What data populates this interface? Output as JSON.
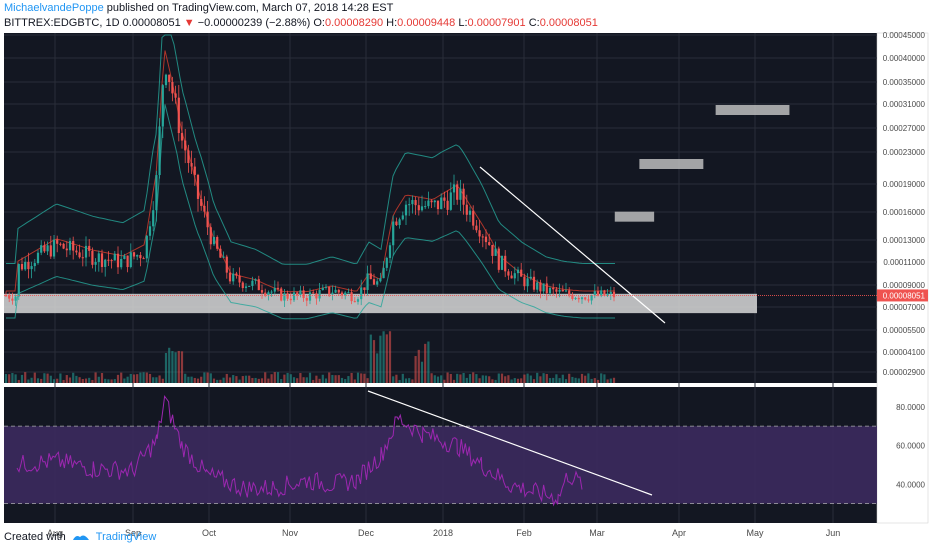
{
  "header": {
    "author": "MichaelvandePoppe",
    "published": "published on TradingView.com, March 07, 2018 14:28 EST",
    "symbol": "BITTREX:EDGBTC, 1D",
    "last": "0.00008051",
    "change": "−0.00000239 (−2.88%)",
    "o_label": "O:",
    "o_val": "0.00008290",
    "h_label": "H:",
    "h_val": "0.00009448",
    "l_label": "L:",
    "l_val": "0.00007901",
    "c_label": "C:",
    "c_val": "0.00008051"
  },
  "footer": {
    "created_with": "Created with",
    "brand": "TradingView"
  },
  "colors": {
    "background": "#131722",
    "up": "#26a69a",
    "down": "#ef5350",
    "bollinger": "#26a69a",
    "ma": "#c0392b",
    "rsi_line": "#9c27b0",
    "rsi_band": "#3c2a5e",
    "zone": "#d8d8d8",
    "price_tag": "#ef5350"
  },
  "chart_data": [
    {
      "type": "line",
      "title": "BITTREX:EDGBTC, 1D",
      "x_labels": [
        "Aug",
        "Sep",
        "Oct",
        "Nov",
        "Dec",
        "2018",
        "Feb",
        "Mar",
        "Apr",
        "May",
        "Jun"
      ],
      "y_ticks": [
        "0.00045000",
        "0.00040000",
        "0.00035000",
        "0.00031000",
        "0.00027000",
        "0.00023000",
        "0.00019000",
        "0.00016000",
        "0.00013000",
        "0.00011000",
        "0.00009000",
        "0.00007000",
        "0.00005500",
        "0.00004100",
        "0.00002900"
      ],
      "current_price_label": "0.00008051",
      "series": [
        {
          "values_approx": [
            [
              "Jul 20",
              0.000105
            ],
            [
              "Aug 05",
              0.000125
            ],
            [
              "Aug 20",
              0.000115
            ],
            [
              "Sep 01",
              0.00011
            ],
            [
              "Sep 10",
              0.00012
            ],
            [
              "Sep 15",
              0.0002
            ],
            [
              "Sep 18",
              0.0004
            ],
            [
              "Sep 25",
              0.00025
            ],
            [
              "Oct 01",
              0.00018
            ],
            [
              "Oct 08",
              0.000125
            ],
            [
              "Oct 15",
              9.5e-05
            ],
            [
              "Oct 25",
              9e-05
            ],
            [
              "Nov 05",
              8e-05
            ],
            [
              "Nov 15",
              8e-05
            ],
            [
              "Nov 25",
              8.5e-05
            ],
            [
              "Dec 05",
              8e-05
            ],
            [
              "Dec 10",
              9.5e-05
            ],
            [
              "Dec 15",
              9e-05
            ],
            [
              "Dec 20",
              0.00015
            ],
            [
              "Dec 25",
              0.00017
            ],
            [
              "Jan 05",
              0.000165
            ],
            [
              "Jan 15",
              0.00018
            ],
            [
              "Jan 25",
              0.00014
            ],
            [
              "Feb 01",
              0.00011
            ],
            [
              "Feb 10",
              9.5e-05
            ],
            [
              "Feb 20",
              8.5e-05
            ],
            [
              "Feb 27",
              8.2e-05
            ],
            [
              "Mar 07",
              8.051e-05
            ]
          ]
        }
      ],
      "support_zone": [
        6.6e-05,
        8.2e-05
      ],
      "projected_targets": [
        {
          "from": "Mar 20",
          "to": "Apr 05",
          "value": 0.000155
        },
        {
          "from": "Mar 30",
          "to": "Apr 25",
          "value": 0.000215
        },
        {
          "from": "Apr 30",
          "to": "May 30",
          "value": 0.0003
        }
      ]
    },
    {
      "type": "line",
      "title": "RSI",
      "y_ticks": [
        "80.0000",
        "60.0000",
        "40.0000"
      ],
      "overbought": 70,
      "oversold": 30,
      "series": [
        {
          "values_approx": [
            [
              "Jul 20",
              50
            ],
            [
              "Aug 05",
              52
            ],
            [
              "Aug 20",
              48
            ],
            [
              "Sep 05",
              47
            ],
            [
              "Sep 15",
              63
            ],
            [
              "Sep 18",
              84
            ],
            [
              "Sep 25",
              60
            ],
            [
              "Oct 05",
              45
            ],
            [
              "Oct 20",
              38
            ],
            [
              "Nov 01",
              38
            ],
            [
              "Nov 15",
              42
            ],
            [
              "Nov 25",
              40
            ],
            [
              "Dec 05",
              42
            ],
            [
              "Dec 15",
              55
            ],
            [
              "Dec 22",
              74
            ],
            [
              "Jan 01",
              66
            ],
            [
              "Jan 15",
              60
            ],
            [
              "Jan 25",
              50
            ],
            [
              "Feb 05",
              40
            ],
            [
              "Feb 15",
              36
            ],
            [
              "Feb 25",
              33
            ],
            [
              "Mar 01",
              45
            ],
            [
              "Mar 07",
              40
            ]
          ]
        }
      ]
    }
  ]
}
